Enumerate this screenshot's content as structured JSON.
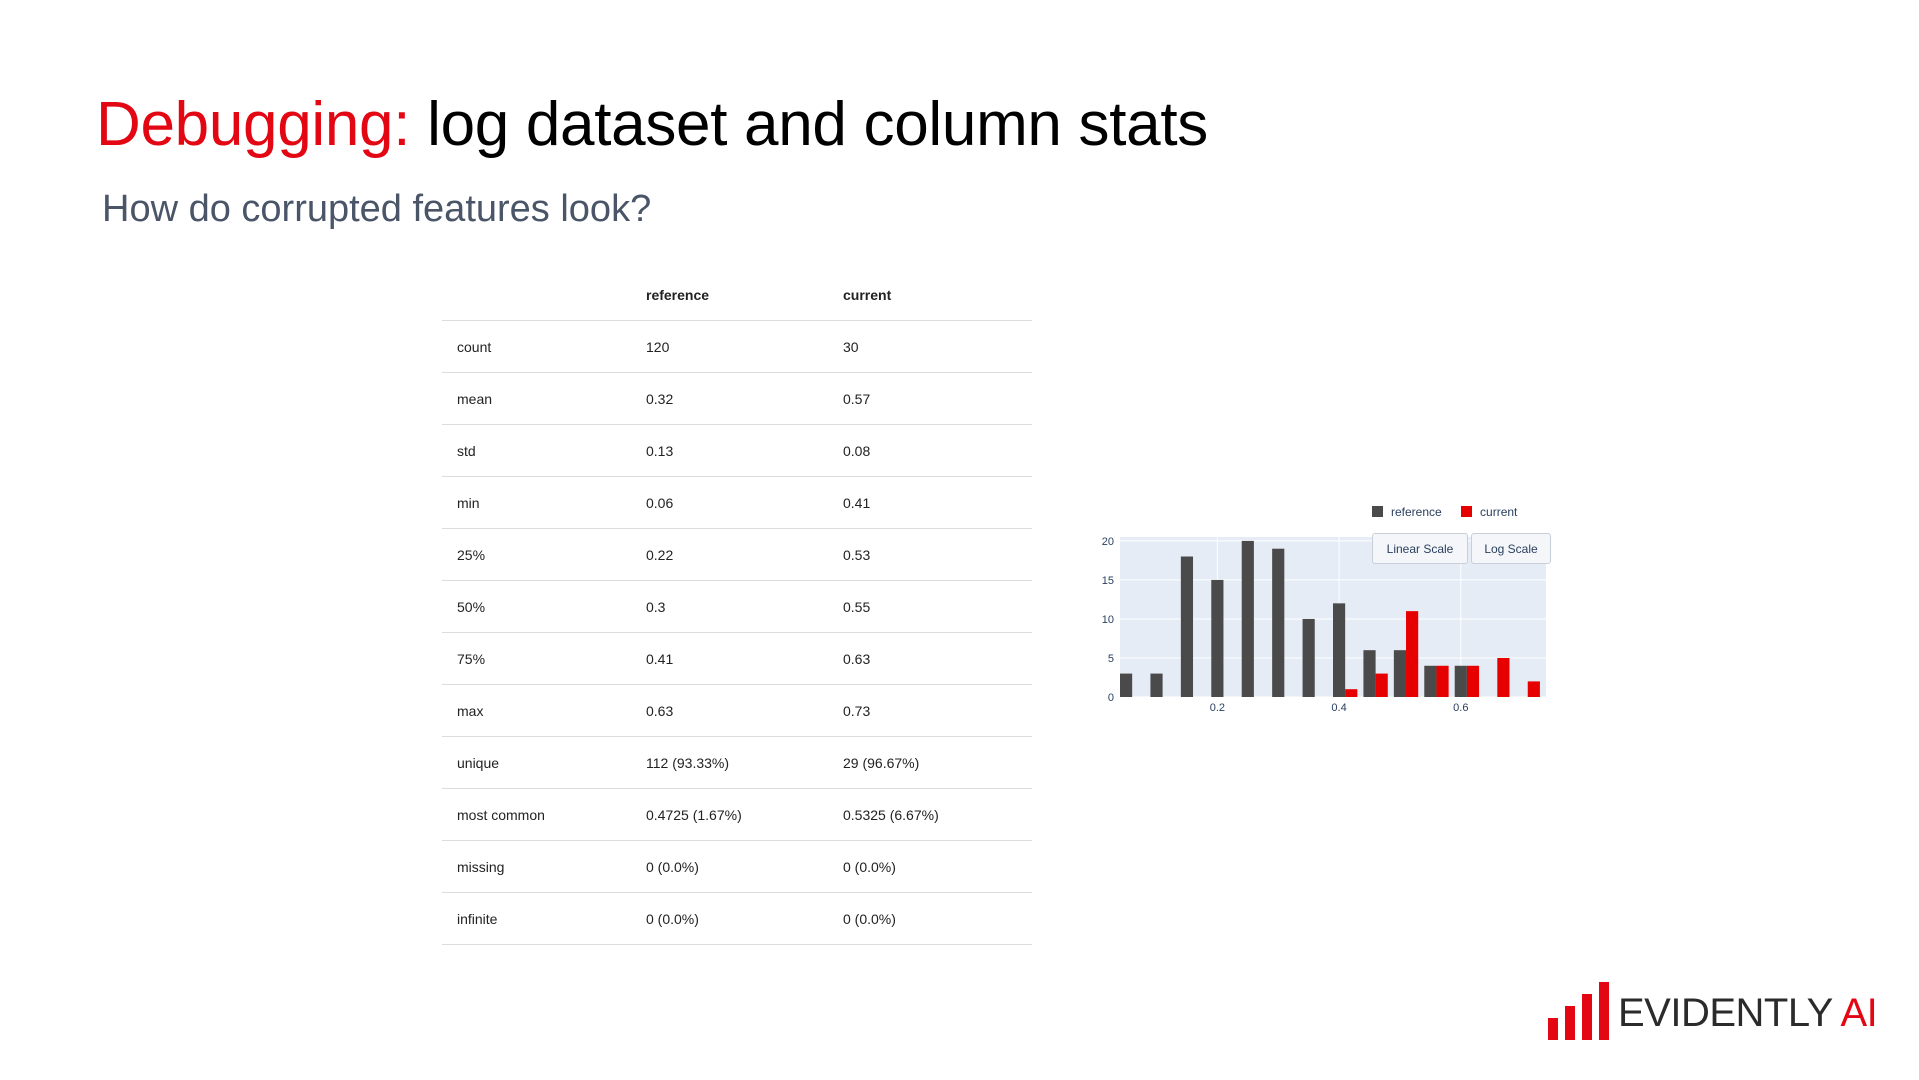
{
  "slide": {
    "title_accent": "Debugging:",
    "title_rest": "log dataset and column stats",
    "subtitle": "How do corrupted features look?"
  },
  "table": {
    "headers": [
      "",
      "reference",
      "current"
    ],
    "rows": [
      [
        "count",
        "120",
        "30"
      ],
      [
        "mean",
        "0.32",
        "0.57"
      ],
      [
        "std",
        "0.13",
        "0.08"
      ],
      [
        "min",
        "0.06",
        "0.41"
      ],
      [
        "25%",
        "0.22",
        "0.53"
      ],
      [
        "50%",
        "0.3",
        "0.55"
      ],
      [
        "75%",
        "0.41",
        "0.63"
      ],
      [
        "max",
        "0.63",
        "0.73"
      ],
      [
        "unique",
        "112 (93.33%)",
        "29 (96.67%)"
      ],
      [
        "most common",
        "0.4725 (1.67%)",
        "0.5325 (6.67%)"
      ],
      [
        "missing",
        "0 (0.0%)",
        "0 (0.0%)"
      ],
      [
        "infinite",
        "0 (0.0%)",
        "0 (0.0%)"
      ]
    ]
  },
  "chart_controls": {
    "linear_label": "Linear Scale",
    "log_label": "Log Scale"
  },
  "chart_data": {
    "type": "bar",
    "x": [
      0.06,
      0.11,
      0.16,
      0.21,
      0.26,
      0.31,
      0.36,
      0.41,
      0.46,
      0.51,
      0.56,
      0.61,
      0.66,
      0.71
    ],
    "series": [
      {
        "name": "reference",
        "color": "#4a4a4a",
        "values": [
          3,
          3,
          18,
          15,
          20,
          19,
          10,
          12,
          6,
          6,
          4,
          4,
          0,
          0
        ]
      },
      {
        "name": "current",
        "color": "#e60000",
        "values": [
          0,
          0,
          0,
          0,
          0,
          0,
          0,
          1,
          3,
          11,
          4,
          4,
          5,
          2
        ]
      }
    ],
    "xticks": [
      "0.2",
      "0.4",
      "0.6"
    ],
    "yticks": [
      "0",
      "5",
      "10",
      "15",
      "20"
    ],
    "xlim": [
      0.04,
      0.74
    ],
    "ylim": [
      0,
      20.5
    ],
    "legend_position": "top-right",
    "plot_background": "#e5ecf6",
    "grid": true
  },
  "logo": {
    "word1": "EVIDENTLY",
    "word2": "AI",
    "color": "#e30613"
  }
}
